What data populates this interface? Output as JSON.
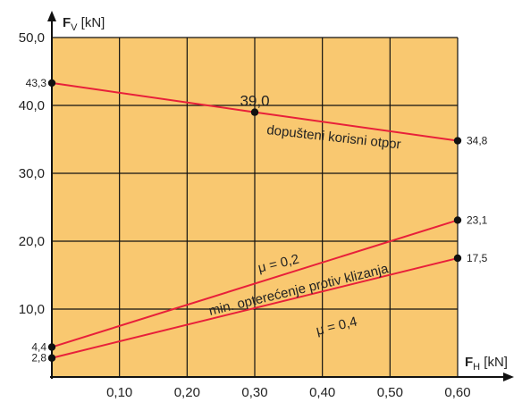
{
  "chart_data": {
    "type": "line",
    "x_axis": {
      "label_main": "F",
      "label_sub": "H",
      "label_unit": " [kN]",
      "range": [
        0,
        0.6
      ],
      "ticks": [
        0.1,
        0.2,
        0.3,
        0.4,
        0.5,
        0.6
      ],
      "tick_labels": [
        "0,10",
        "0,20",
        "0,30",
        "0,40",
        "0,50",
        "0,60"
      ]
    },
    "y_axis": {
      "label_main": "F",
      "label_sub": "V",
      "label_unit": " [kN]",
      "range": [
        0,
        50
      ],
      "ticks": [
        10,
        20,
        30,
        40,
        50
      ],
      "tick_labels": [
        "10,0",
        "20,0",
        "30,0",
        "40,0",
        "50,0"
      ]
    },
    "grid": true,
    "background_color": "#f9c870",
    "line_color": "#e8203a",
    "series": [
      {
        "points": [
          [
            0,
            43.3
          ],
          [
            0.3,
            39.0
          ],
          [
            0.6,
            34.8
          ]
        ]
      },
      {
        "points": [
          [
            0,
            4.4
          ],
          [
            0.6,
            23.1
          ]
        ]
      },
      {
        "points": [
          [
            0,
            2.8
          ],
          [
            0.6,
            17.5
          ]
        ]
      }
    ],
    "point_labels": [
      {
        "x": 0,
        "y": 43.3,
        "text": "43,3",
        "anchor": "left"
      },
      {
        "x": 0.3,
        "y": 39.0,
        "text": "39,0",
        "anchor": "above"
      },
      {
        "x": 0.6,
        "y": 34.8,
        "text": "34,8",
        "anchor": "right"
      },
      {
        "x": 0,
        "y": 4.4,
        "text": "4,4",
        "anchor": "left"
      },
      {
        "x": 0.6,
        "y": 23.1,
        "text": "23,1",
        "anchor": "right"
      },
      {
        "x": 0,
        "y": 2.8,
        "text": "2,8",
        "anchor": "left"
      },
      {
        "x": 0.6,
        "y": 17.5,
        "text": "17,5",
        "anchor": "right"
      }
    ],
    "annotations": [
      {
        "text": "dopušteni korisni otpor"
      },
      {
        "text": "μ = 0,2"
      },
      {
        "text": "min. opterećenje protiv klizanja"
      },
      {
        "text": "μ = 0,4"
      }
    ]
  }
}
